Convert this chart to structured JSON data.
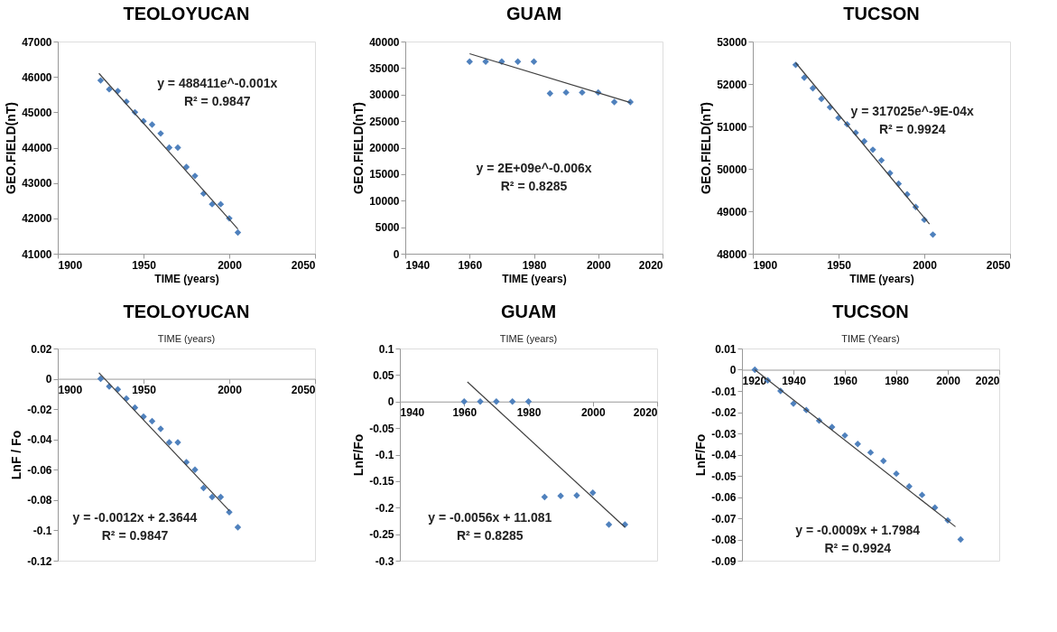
{
  "chart_data": [
    {
      "type": "scatter",
      "title": "TEOLOYUCAN",
      "xlabel": "TIME (years)",
      "ylabel": "GEO.FIELD(nT)",
      "xlim": [
        1900,
        2050
      ],
      "xticks": [
        1900,
        1950,
        2000,
        2050
      ],
      "ylim": [
        41000,
        47000
      ],
      "yticks": [
        41000,
        42000,
        43000,
        44000,
        45000,
        46000,
        47000
      ],
      "series": [
        {
          "type": "scatter",
          "marker": "diamond",
          "color": "#4f81bd",
          "x": [
            1925,
            1930,
            1935,
            1940,
            1945,
            1950,
            1955,
            1960,
            1965,
            1970,
            1975,
            1980,
            1985,
            1990,
            1995,
            2000,
            2005
          ],
          "values": [
            45900,
            45650,
            45600,
            45300,
            45000,
            44750,
            44650,
            44400,
            44000,
            44000,
            43450,
            43200,
            42700,
            42400,
            42400,
            42000,
            41600
          ]
        },
        {
          "type": "line",
          "color": "#404040",
          "x": [
            1924,
            2005
          ],
          "values": [
            46100,
            41700
          ]
        }
      ],
      "annotations": [
        "y = 488411e^-0.001x",
        "R² = 0.9847"
      ]
    },
    {
      "type": "scatter",
      "title": "GUAM",
      "xlabel": "TIME (years)",
      "ylabel": "GEO.FIELD(nT)",
      "xlim": [
        1940,
        2020
      ],
      "xticks": [
        1940,
        1960,
        1980,
        2000,
        2020
      ],
      "ylim": [
        0,
        40000
      ],
      "yticks": [
        0,
        5000,
        10000,
        15000,
        20000,
        25000,
        30000,
        35000,
        40000
      ],
      "series": [
        {
          "type": "scatter",
          "marker": "diamond",
          "color": "#4f81bd",
          "x": [
            1960,
            1965,
            1970,
            1975,
            1980,
            1985,
            1990,
            1995,
            2000,
            2005,
            2010
          ],
          "values": [
            36200,
            36200,
            36200,
            36200,
            36200,
            30200,
            30400,
            30400,
            30400,
            28600,
            28600
          ]
        },
        {
          "type": "line",
          "color": "#404040",
          "x": [
            1960,
            2010
          ],
          "values": [
            37700,
            28500
          ]
        }
      ],
      "annotations": [
        "y = 2E+09e^-0.006x",
        "R² = 0.8285"
      ]
    },
    {
      "type": "scatter",
      "title": "TUCSON",
      "xlabel": "TIME (years)",
      "ylabel": "GEO.FIELD(nT)",
      "xlim": [
        1900,
        2050
      ],
      "xticks": [
        1900,
        1950,
        2000,
        2050
      ],
      "ylim": [
        48000,
        53000
      ],
      "yticks": [
        48000,
        49000,
        50000,
        51000,
        52000,
        53000
      ],
      "series": [
        {
          "type": "scatter",
          "marker": "diamond",
          "color": "#4f81bd",
          "x": [
            1925,
            1930,
            1935,
            1940,
            1945,
            1950,
            1955,
            1960,
            1965,
            1970,
            1975,
            1980,
            1985,
            1990,
            1995,
            2000,
            2005
          ],
          "values": [
            52450,
            52150,
            51900,
            51650,
            51450,
            51200,
            51050,
            50850,
            50650,
            50450,
            50200,
            49900,
            49650,
            49400,
            49100,
            48800,
            48450
          ]
        },
        {
          "type": "line",
          "color": "#404040",
          "x": [
            1925,
            2003
          ],
          "values": [
            52500,
            48700
          ]
        }
      ],
      "annotations": [
        "y = 317025e^-9E-04x",
        "R² = 0.9924"
      ]
    },
    {
      "type": "scatter",
      "title": "TEOLOYUCAN",
      "xlabel": "TIME (years)",
      "ylabel": "LnF / Fo",
      "xlim": [
        1900,
        2050
      ],
      "xticks": [
        1900,
        1950,
        2000,
        2050
      ],
      "ylim": [
        -0.12,
        0.02
      ],
      "yticks": [
        -0.12,
        -0.1,
        -0.08,
        -0.06,
        -0.04,
        -0.02,
        0,
        0.02
      ],
      "series": [
        {
          "type": "scatter",
          "marker": "diamond",
          "color": "#4f81bd",
          "x": [
            1925,
            1930,
            1935,
            1940,
            1945,
            1950,
            1955,
            1960,
            1965,
            1970,
            1975,
            1980,
            1985,
            1990,
            1995,
            2000,
            2005
          ],
          "values": [
            0,
            -0.005,
            -0.007,
            -0.013,
            -0.019,
            -0.025,
            -0.028,
            -0.033,
            -0.042,
            -0.042,
            -0.055,
            -0.06,
            -0.072,
            -0.078,
            -0.078,
            -0.088,
            -0.098
          ]
        },
        {
          "type": "line",
          "color": "#404040",
          "x": [
            1924,
            2000
          ],
          "values": [
            0.004,
            -0.087
          ]
        }
      ],
      "annotations": [
        "y = -0.0012x + 2.3644",
        "R² = 0.9847"
      ]
    },
    {
      "type": "scatter",
      "title": "GUAM",
      "xlabel": "TIME (years)",
      "ylabel": "LnF/Fo",
      "xlim": [
        1940,
        2020
      ],
      "xticks": [
        1940,
        1960,
        1980,
        2000,
        2020
      ],
      "ylim": [
        -0.3,
        0.1
      ],
      "yticks": [
        -0.3,
        -0.25,
        -0.2,
        -0.15,
        -0.1,
        -0.05,
        0,
        0.05,
        0.1
      ],
      "series": [
        {
          "type": "scatter",
          "marker": "diamond",
          "color": "#4f81bd",
          "x": [
            1960,
            1965,
            1970,
            1975,
            1980,
            1985,
            1990,
            1995,
            2000,
            2005,
            2010
          ],
          "values": [
            0,
            0,
            0,
            0,
            0,
            -0.18,
            -0.178,
            -0.177,
            -0.172,
            -0.232,
            -0.232
          ]
        },
        {
          "type": "line",
          "color": "#404040",
          "x": [
            1961,
            2010
          ],
          "values": [
            0.037,
            -0.237
          ]
        }
      ],
      "annotations": [
        "y = -0.0056x + 11.081",
        "R² = 0.8285"
      ]
    },
    {
      "type": "scatter",
      "title": "TUCSON",
      "xlabel": "TIME (Years)",
      "ylabel": "LnF/Fo",
      "xlim": [
        1920,
        2020
      ],
      "xticks": [
        1920,
        1940,
        1960,
        1980,
        2000,
        2020
      ],
      "ylim": [
        -0.09,
        0.01
      ],
      "yticks": [
        -0.09,
        -0.08,
        -0.07,
        -0.06,
        -0.05,
        -0.04,
        -0.03,
        -0.02,
        -0.01,
        0,
        0.01
      ],
      "series": [
        {
          "type": "scatter",
          "marker": "diamond",
          "color": "#4f81bd",
          "x": [
            1925,
            1930,
            1935,
            1940,
            1945,
            1950,
            1955,
            1960,
            1965,
            1970,
            1975,
            1980,
            1985,
            1990,
            1995,
            2000,
            2005
          ],
          "values": [
            0,
            -0.005,
            -0.01,
            -0.016,
            -0.019,
            -0.024,
            -0.027,
            -0.031,
            -0.035,
            -0.039,
            -0.043,
            -0.049,
            -0.055,
            -0.059,
            -0.065,
            -0.071,
            -0.08
          ]
        },
        {
          "type": "line",
          "color": "#404040",
          "x": [
            1925,
            2003
          ],
          "values": [
            0.0,
            -0.074
          ]
        }
      ],
      "annotations": [
        "y = -0.0009x + 1.7984",
        "R² = 0.9924"
      ]
    }
  ]
}
